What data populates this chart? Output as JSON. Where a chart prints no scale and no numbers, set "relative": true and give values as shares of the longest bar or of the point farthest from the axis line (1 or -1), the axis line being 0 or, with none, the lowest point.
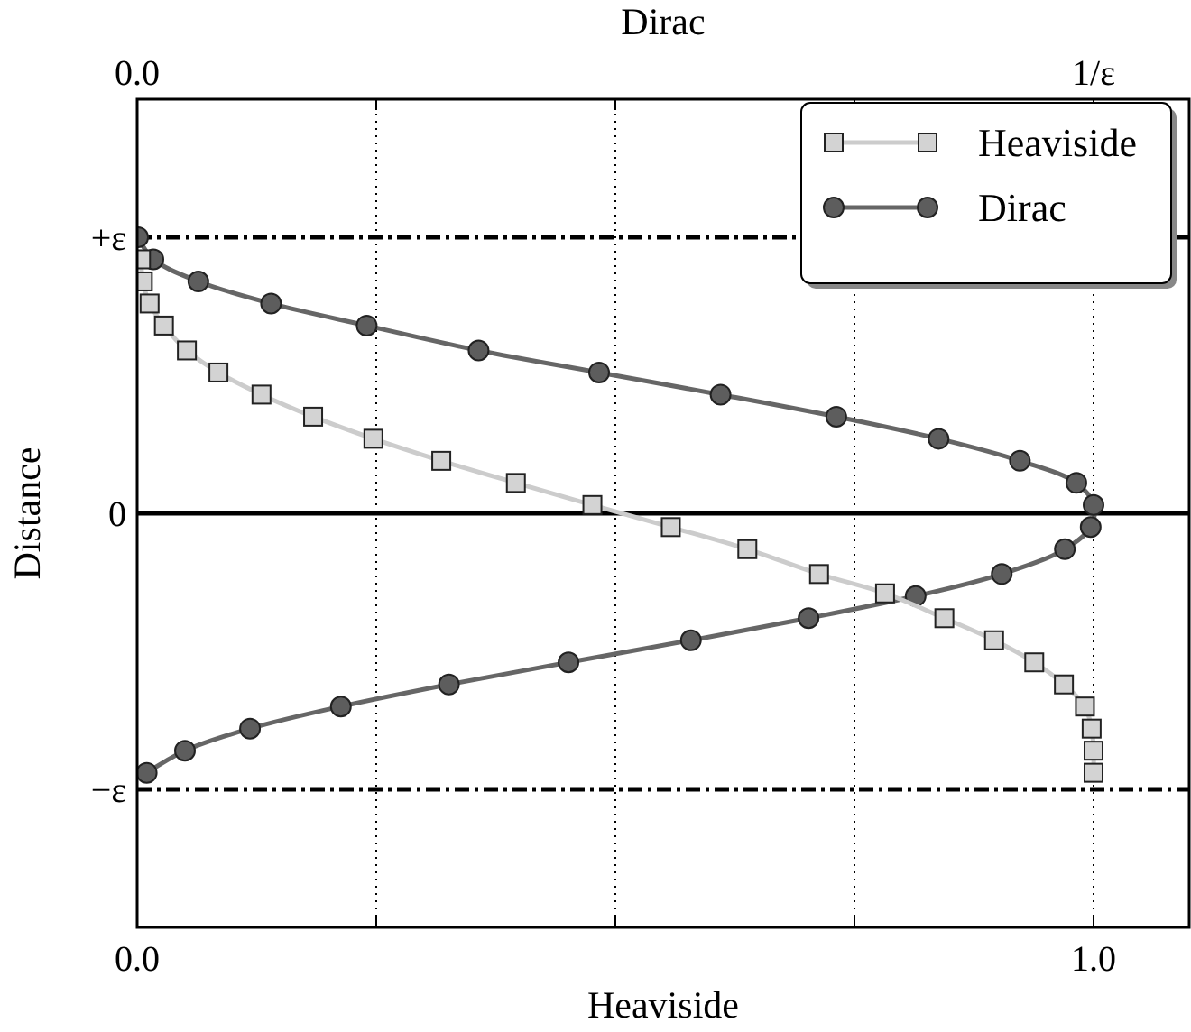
{
  "chart_data": {
    "type": "line",
    "xlabel": "Heaviside",
    "ylabel": "Distance",
    "x2label": "Dirac",
    "xlim": [
      0,
      1.1
    ],
    "xticks": [
      {
        "value": 0,
        "label": "0.0"
      },
      {
        "value": 0.25,
        "label": null
      },
      {
        "value": 0.5,
        "label": null
      },
      {
        "value": 0.75,
        "label": null
      },
      {
        "value": 1,
        "label": "1.0"
      }
    ],
    "x2lim": [
      0,
      1.1
    ],
    "x2ticks": [
      {
        "value": 0,
        "label": "0.0"
      },
      {
        "value": 0.25,
        "label": null
      },
      {
        "value": 0.5,
        "label": null
      },
      {
        "value": 0.75,
        "label": null
      },
      {
        "value": 1,
        "label": "1/ε"
      }
    ],
    "relative": true,
    "grid": "x",
    "legend": "top right",
    "line_style": "solid",
    "ref_lines": [
      {
        "axis": "y",
        "value": 1,
        "label": "+ε",
        "color": "#000000",
        "line_style": "dashdot"
      },
      {
        "axis": "y",
        "value": -1,
        "label": "−ε",
        "color": "#000000",
        "line_style": "dashdot"
      },
      {
        "axis": "y",
        "value": 0,
        "label": "0",
        "color": "#000000",
        "line_style": "solid"
      }
    ],
    "series": [
      {
        "name": "Heaviside",
        "color": "#cccccc",
        "marker": "square",
        "x": [
          0.004,
          0.006,
          0.013,
          0.028,
          0.052,
          0.085,
          0.13,
          0.184,
          0.247,
          0.318,
          0.396,
          0.476,
          0.558,
          0.638,
          0.713,
          0.782,
          0.844,
          0.896,
          0.938,
          0.969,
          0.991,
          0.998,
          1.0,
          1.0
        ],
        "values": [
          0.92,
          0.84,
          0.76,
          0.68,
          0.59,
          0.51,
          0.43,
          0.35,
          0.27,
          0.19,
          0.11,
          0.03,
          -0.05,
          -0.13,
          -0.22,
          -0.29,
          -0.38,
          -0.46,
          -0.54,
          -0.62,
          -0.7,
          -0.78,
          -0.86,
          -0.94
        ]
      },
      {
        "name": "Dirac",
        "color": "#666666",
        "marker": "circle",
        "x": [
          0.001,
          0.017,
          0.064,
          0.14,
          0.24,
          0.357,
          0.483,
          0.61,
          0.731,
          0.838,
          0.923,
          0.982,
          1.0,
          0.997,
          0.97,
          0.904,
          0.814,
          0.702,
          0.579,
          0.451,
          0.326,
          0.213,
          0.118,
          0.05,
          0.01
        ],
        "values": [
          1.0,
          0.92,
          0.84,
          0.76,
          0.68,
          0.59,
          0.51,
          0.43,
          0.35,
          0.27,
          0.19,
          0.11,
          0.03,
          -0.05,
          -0.13,
          -0.22,
          -0.3,
          -0.38,
          -0.46,
          -0.54,
          -0.62,
          -0.7,
          -0.78,
          -0.86,
          -0.94
        ]
      }
    ]
  }
}
